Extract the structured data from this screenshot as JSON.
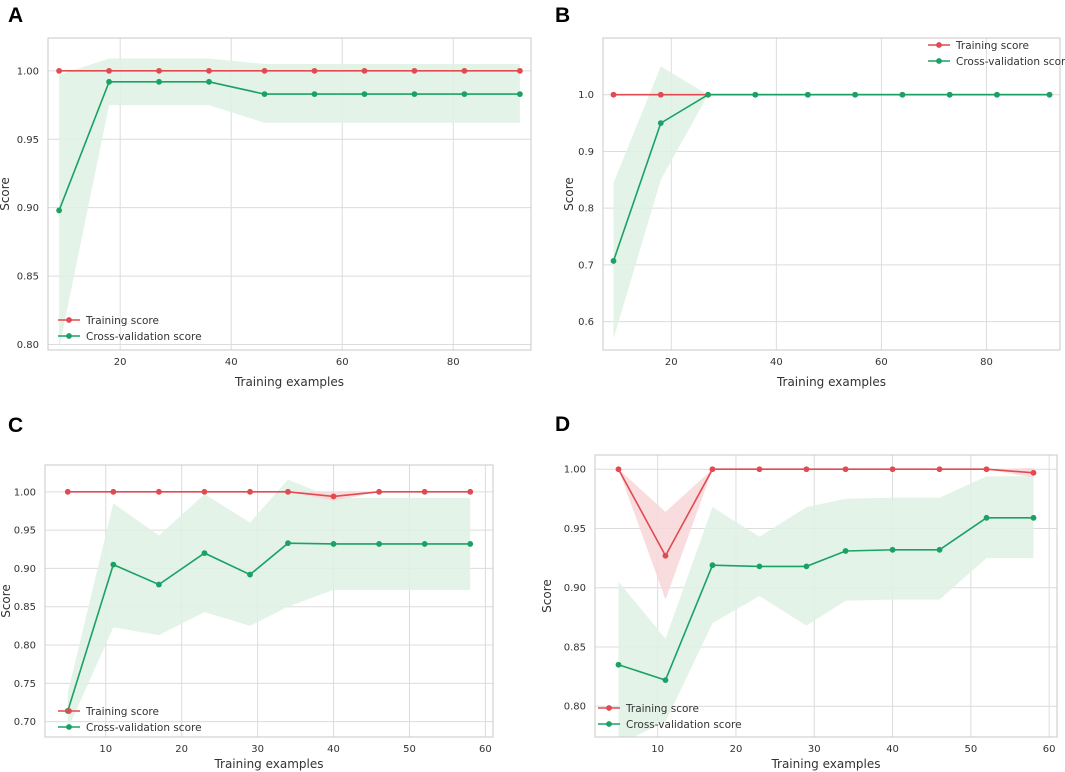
{
  "colors": {
    "training": "#e04a50",
    "cv": "#1aa265",
    "training_band": "#f7d6d8",
    "cv_band": "#dff1e4"
  },
  "chart_data": [
    {
      "panel": "A",
      "type": "line",
      "xlabel": "Training examples",
      "ylabel": "Score",
      "xlim": [
        7,
        94
      ],
      "ylim": [
        0.796,
        1.024
      ],
      "xticks": [
        20,
        40,
        60,
        80
      ],
      "yticks": [
        0.8,
        0.85,
        0.9,
        0.95,
        1.0
      ],
      "ytick_labels": [
        "0.80",
        "0.85",
        "0.90",
        "0.95",
        "1.00"
      ],
      "legend": {
        "position": "lower-left",
        "entries": [
          "Training score",
          "Cross-validation score"
        ]
      },
      "x": [
        9,
        18,
        27,
        36,
        46,
        55,
        64,
        73,
        82,
        92
      ],
      "series": [
        {
          "name": "Training score",
          "color_key": "training",
          "values": [
            1.0,
            1.0,
            1.0,
            1.0,
            1.0,
            1.0,
            1.0,
            1.0,
            1.0,
            1.0
          ],
          "lower": [
            1.0,
            1.0,
            1.0,
            1.0,
            1.0,
            1.0,
            1.0,
            1.0,
            1.0,
            1.0
          ],
          "upper": [
            1.0,
            1.0,
            1.0,
            1.0,
            1.0,
            1.0,
            1.0,
            1.0,
            1.0,
            1.0
          ]
        },
        {
          "name": "Cross-validation score",
          "color_key": "cv",
          "values": [
            0.898,
            0.992,
            0.992,
            0.992,
            0.983,
            0.983,
            0.983,
            0.983,
            0.983,
            0.983
          ],
          "lower": [
            0.797,
            0.975,
            0.975,
            0.975,
            0.962,
            0.962,
            0.962,
            0.962,
            0.962,
            0.962
          ],
          "upper": [
            0.997,
            1.009,
            1.009,
            1.009,
            1.005,
            1.005,
            1.005,
            1.005,
            1.005,
            1.005
          ]
        }
      ]
    },
    {
      "panel": "B",
      "type": "line",
      "xlabel": "Training examples",
      "ylabel": "Score",
      "xlim": [
        7,
        94
      ],
      "ylim": [
        0.55,
        1.1
      ],
      "xticks": [
        20,
        40,
        60,
        80
      ],
      "yticks": [
        0.6,
        0.7,
        0.8,
        0.9,
        1.0
      ],
      "ytick_labels": [
        "0.6",
        "0.7",
        "0.8",
        "0.9",
        "1.0"
      ],
      "legend": {
        "position": "upper-right",
        "entries": [
          "Training score",
          "Cross-validation score"
        ]
      },
      "x": [
        9,
        18,
        27,
        36,
        46,
        55,
        64,
        73,
        82,
        92
      ],
      "series": [
        {
          "name": "Training score",
          "color_key": "training",
          "values": [
            1.0,
            1.0,
            1.0,
            1.0,
            1.0,
            1.0,
            1.0,
            1.0,
            1.0,
            1.0
          ],
          "lower": [
            1.0,
            1.0,
            1.0,
            1.0,
            1.0,
            1.0,
            1.0,
            1.0,
            1.0,
            1.0
          ],
          "upper": [
            1.0,
            1.0,
            1.0,
            1.0,
            1.0,
            1.0,
            1.0,
            1.0,
            1.0,
            1.0
          ]
        },
        {
          "name": "Cross-validation score",
          "color_key": "cv",
          "values": [
            0.707,
            0.95,
            1.0,
            1.0,
            1.0,
            1.0,
            1.0,
            1.0,
            1.0,
            1.0
          ],
          "lower": [
            0.57,
            0.85,
            1.0,
            1.0,
            1.0,
            1.0,
            1.0,
            1.0,
            1.0,
            1.0
          ],
          "upper": [
            0.845,
            1.05,
            1.0,
            1.0,
            1.0,
            1.0,
            1.0,
            1.0,
            1.0,
            1.0
          ]
        }
      ]
    },
    {
      "panel": "C",
      "type": "line",
      "xlabel": "Training examples",
      "ylabel": "Score",
      "xlim": [
        2,
        61
      ],
      "ylim": [
        0.68,
        1.035
      ],
      "xticks": [
        10,
        20,
        30,
        40,
        50,
        60
      ],
      "yticks": [
        0.7,
        0.75,
        0.8,
        0.85,
        0.9,
        0.95,
        1.0
      ],
      "ytick_labels": [
        "0.70",
        "0.75",
        "0.80",
        "0.85",
        "0.90",
        "0.95",
        "1.00"
      ],
      "legend": {
        "position": "lower-left",
        "entries": [
          "Training score",
          "Cross-validation score"
        ]
      },
      "x": [
        5,
        11,
        17,
        23,
        29,
        34,
        40,
        46,
        52,
        58
      ],
      "series": [
        {
          "name": "Training score",
          "color_key": "training",
          "values": [
            1.0,
            1.0,
            1.0,
            1.0,
            1.0,
            1.0,
            0.994,
            1.0,
            1.0,
            1.0
          ],
          "lower": [
            1.0,
            1.0,
            1.0,
            1.0,
            1.0,
            1.0,
            0.988,
            1.0,
            1.0,
            1.0
          ],
          "upper": [
            1.0,
            1.0,
            1.0,
            1.0,
            1.0,
            1.0,
            1.0,
            1.0,
            1.0,
            1.0
          ]
        },
        {
          "name": "Cross-validation score",
          "color_key": "cv",
          "values": [
            0.714,
            0.905,
            0.879,
            0.92,
            0.892,
            0.933,
            0.932,
            0.932,
            0.932,
            0.932
          ],
          "lower": [
            0.69,
            0.823,
            0.813,
            0.843,
            0.825,
            0.85,
            0.872,
            0.872,
            0.872,
            0.872
          ],
          "upper": [
            0.738,
            0.985,
            0.943,
            0.997,
            0.96,
            1.016,
            0.992,
            0.992,
            0.992,
            0.992
          ]
        }
      ]
    },
    {
      "panel": "D",
      "type": "line",
      "xlabel": "Training examples",
      "ylabel": "Score",
      "xlim": [
        2,
        61
      ],
      "ylim": [
        0.774,
        1.012
      ],
      "xticks": [
        10,
        20,
        30,
        40,
        50,
        60
      ],
      "yticks": [
        0.8,
        0.85,
        0.9,
        0.95,
        1.0
      ],
      "ytick_labels": [
        "0.80",
        "0.85",
        "0.90",
        "0.95",
        "1.00"
      ],
      "legend": {
        "position": "lower-left",
        "entries": [
          "Training score",
          "Cross-validation score"
        ]
      },
      "x": [
        5,
        11,
        17,
        23,
        29,
        34,
        40,
        46,
        52,
        58
      ],
      "series": [
        {
          "name": "Training score",
          "color_key": "training",
          "values": [
            1.0,
            0.927,
            1.0,
            1.0,
            1.0,
            1.0,
            1.0,
            1.0,
            1.0,
            0.997
          ],
          "lower": [
            1.0,
            0.89,
            1.0,
            1.0,
            1.0,
            1.0,
            1.0,
            1.0,
            1.0,
            0.993
          ],
          "upper": [
            1.0,
            0.964,
            1.0,
            1.0,
            1.0,
            1.0,
            1.0,
            1.0,
            1.0,
            1.001
          ]
        },
        {
          "name": "Cross-validation score",
          "color_key": "cv",
          "values": [
            0.835,
            0.822,
            0.919,
            0.918,
            0.918,
            0.931,
            0.932,
            0.932,
            0.959,
            0.959
          ],
          "lower": [
            0.768,
            0.787,
            0.87,
            0.893,
            0.868,
            0.889,
            0.89,
            0.89,
            0.925,
            0.925
          ],
          "upper": [
            0.905,
            0.857,
            0.968,
            0.943,
            0.968,
            0.975,
            0.976,
            0.976,
            0.994,
            0.994
          ]
        }
      ]
    }
  ]
}
